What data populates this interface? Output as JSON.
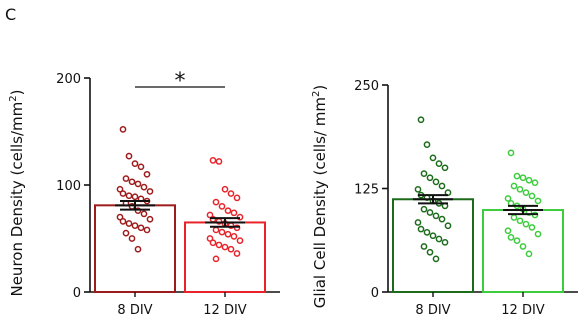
{
  "panel_label": "C",
  "chart_data": [
    {
      "type": "bar",
      "title": "",
      "xlabel": "",
      "ylabel_main": "Neuron Density (cells/mm",
      "ylabel_sup": "2",
      "ylabel_end": ")",
      "ylim": [
        0,
        200
      ],
      "yticks": [
        "0",
        "100",
        "200"
      ],
      "categories": [
        "8 DIV",
        "12 DIV"
      ],
      "values": [
        81,
        65
      ],
      "sem": [
        4,
        4
      ],
      "colors": [
        "#9e1b1b",
        "#e8232a"
      ],
      "significance": "*",
      "points": [
        [
          152,
          127,
          120,
          117,
          110,
          106,
          103,
          101,
          98,
          96,
          94,
          92,
          90,
          89,
          87,
          85,
          83,
          80,
          76,
          73,
          70,
          68,
          66,
          64,
          62,
          60,
          58,
          55,
          50,
          40
        ],
        [
          123,
          122,
          96,
          92,
          88,
          84,
          80,
          76,
          74,
          72,
          70,
          68,
          66,
          64,
          62,
          60,
          58,
          56,
          54,
          52,
          50,
          48,
          46,
          44,
          42,
          40,
          36,
          31
        ]
      ]
    },
    {
      "type": "bar",
      "title": "",
      "xlabel": "",
      "ylabel_main": "Glial Cell Density (cells/ mm",
      "ylabel_sup": "2",
      "ylabel_end": ")",
      "ylim": [
        0,
        250
      ],
      "yticks": [
        "0",
        "125",
        "250"
      ],
      "categories": [
        "8 DIV",
        "12 DIV"
      ],
      "values": [
        112,
        99
      ],
      "sem": [
        5,
        5
      ],
      "colors": [
        "#1b6b1b",
        "#3dcc3d"
      ],
      "significance": "",
      "points": [
        [
          208,
          178,
          162,
          155,
          150,
          143,
          138,
          133,
          128,
          124,
          120,
          117,
          114,
          110,
          107,
          104,
          100,
          96,
          92,
          88,
          84,
          80,
          76,
          72,
          68,
          64,
          60,
          55,
          48,
          40
        ],
        [
          168,
          140,
          138,
          135,
          132,
          128,
          124,
          120,
          116,
          113,
          110,
          107,
          104,
          100,
          96,
          93,
          90,
          86,
          82,
          78,
          74,
          70,
          66,
          62,
          55,
          46
        ]
      ]
    }
  ]
}
